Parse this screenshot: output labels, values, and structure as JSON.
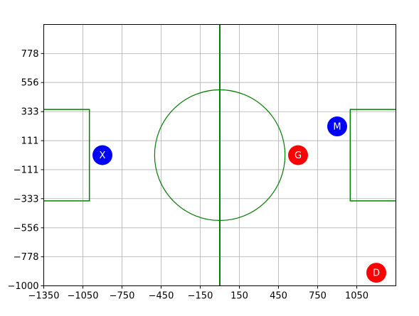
{
  "chart_data": {
    "type": "scatter",
    "title": "",
    "xlabel": "",
    "ylabel": "",
    "xlim": [
      -1350,
      1350
    ],
    "ylim": [
      -1000,
      1000
    ],
    "x_ticks": [
      -1350,
      -1050,
      -750,
      -450,
      -150,
      150,
      450,
      750,
      1050
    ],
    "x_tick_labels": [
      "−1350",
      "−1050",
      "−750",
      "−450",
      "−150",
      "150",
      "450",
      "750",
      "1050"
    ],
    "y_ticks": [
      -1000,
      -778,
      -556,
      -333,
      -111,
      111,
      333,
      556,
      778
    ],
    "y_tick_labels": [
      "−1000",
      "−778",
      "−556",
      "−333",
      "−111",
      "111",
      "333",
      "556",
      "778"
    ],
    "grid": true,
    "colors": {
      "field_lines": "#008000",
      "grid": "#b0b0b0",
      "team_blue": "#0000ff",
      "team_red": "#ff0000"
    },
    "field": {
      "center_line_x": 0,
      "center_circle": {
        "cx": 0,
        "cy": 0,
        "r": 500
      },
      "left_box": {
        "x_min": -1350,
        "x_max": -1000,
        "y_min": -350,
        "y_max": 350
      },
      "right_box": {
        "x_min": 1000,
        "x_max": 1350,
        "y_min": -350,
        "y_max": 350
      }
    },
    "points": [
      {
        "label": "X",
        "x": -900,
        "y": 0,
        "color": "#0000ff"
      },
      {
        "label": "M",
        "x": 900,
        "y": 220,
        "color": "#0000ff"
      },
      {
        "label": "G",
        "x": 600,
        "y": 0,
        "color": "#ff0000"
      },
      {
        "label": "D",
        "x": 1200,
        "y": -900,
        "color": "#ff0000"
      }
    ]
  }
}
